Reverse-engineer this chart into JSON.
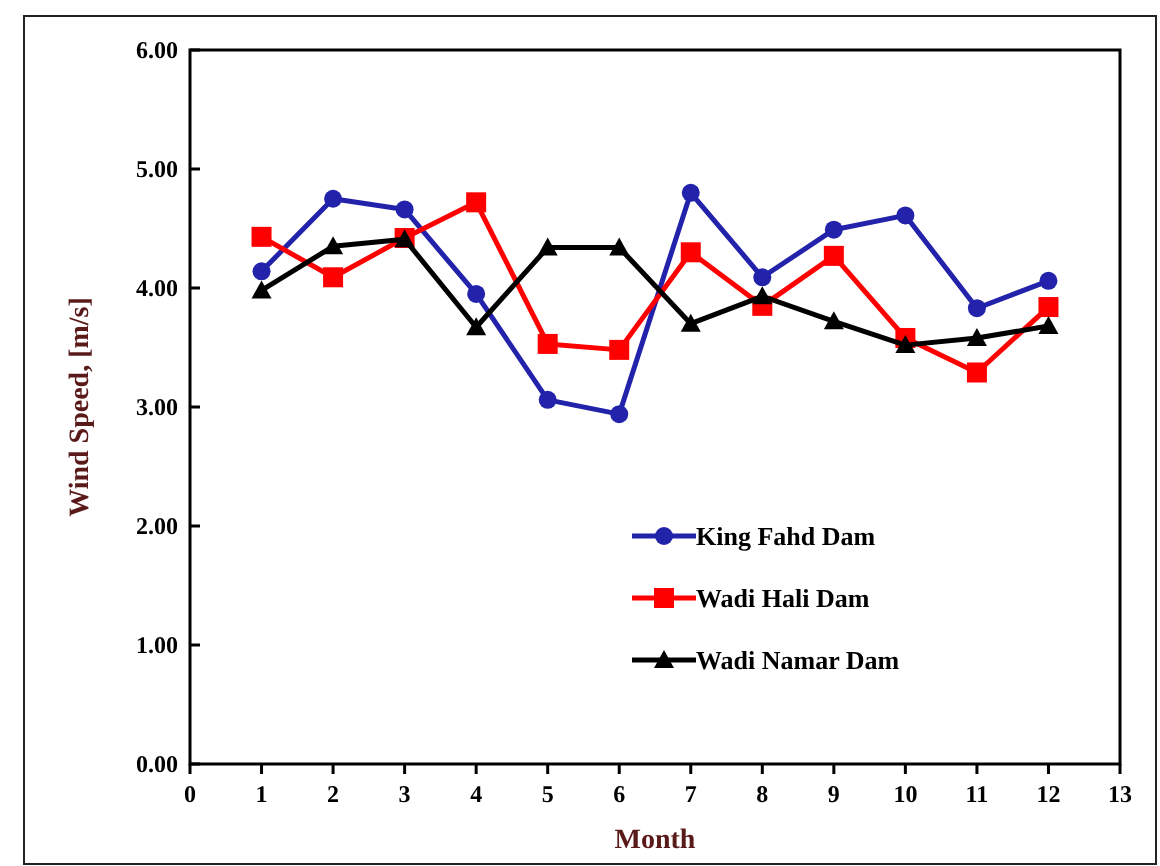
{
  "chart_data": {
    "type": "line",
    "xlabel": "Month",
    "ylabel": "Wind Speed, [m/s]",
    "x": [
      1,
      2,
      3,
      4,
      5,
      6,
      7,
      8,
      9,
      10,
      11,
      12
    ],
    "xlim": [
      0,
      13
    ],
    "xticks": [
      0,
      1,
      2,
      3,
      4,
      5,
      6,
      7,
      8,
      9,
      10,
      11,
      12,
      13
    ],
    "ylim": [
      0,
      6
    ],
    "yticks": [
      {
        "value": 0,
        "label": "0.00"
      },
      {
        "value": 1,
        "label": "1.00"
      },
      {
        "value": 2,
        "label": "2.00"
      },
      {
        "value": 3,
        "label": "3.00"
      },
      {
        "value": 4,
        "label": "4.00"
      },
      {
        "value": 5,
        "label": "5.00"
      },
      {
        "value": 6,
        "label": "6.00"
      }
    ],
    "grid": false,
    "legend": "bottom",
    "series": [
      {
        "name": "King Fahd Dam",
        "color": "#2222aa",
        "marker": "circle",
        "values": [
          4.14,
          4.75,
          4.66,
          3.95,
          3.06,
          2.94,
          4.8,
          4.09,
          4.49,
          4.61,
          3.83,
          4.06
        ]
      },
      {
        "name": "Wadi Hali Dam",
        "color": "#ff0000",
        "marker": "square",
        "values": [
          4.43,
          4.09,
          4.42,
          4.72,
          3.53,
          3.48,
          4.3,
          3.85,
          4.27,
          3.58,
          3.29,
          3.84
        ]
      },
      {
        "name": "Wadi Namar Dam",
        "color": "#000000",
        "marker": "triangle",
        "values": [
          3.98,
          4.35,
          4.41,
          3.67,
          4.34,
          4.34,
          3.7,
          3.93,
          3.72,
          3.52,
          3.58,
          3.68
        ]
      }
    ]
  }
}
